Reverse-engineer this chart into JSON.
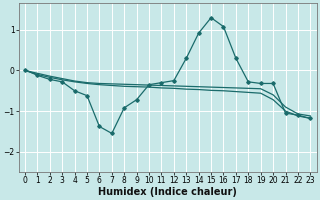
{
  "xlabel": "Humidex (Indice chaleur)",
  "bg_color": "#c8e8e8",
  "grid_color": "#ffffff",
  "line_color": "#1a6b6b",
  "xlim": [
    -0.5,
    23.5
  ],
  "ylim": [
    -2.5,
    1.65
  ],
  "yticks": [
    -2,
    -1,
    0,
    1
  ],
  "xticks": [
    0,
    1,
    2,
    3,
    4,
    5,
    6,
    7,
    8,
    9,
    10,
    11,
    12,
    13,
    14,
    15,
    16,
    17,
    18,
    19,
    20,
    21,
    22,
    23
  ],
  "series1_x": [
    0,
    1,
    2,
    3,
    4,
    5,
    6,
    7,
    8,
    9,
    10,
    11,
    12,
    13,
    14,
    15,
    16,
    17,
    18,
    19,
    20,
    21,
    22,
    23
  ],
  "series1_y": [
    0.0,
    -0.07,
    -0.14,
    -0.2,
    -0.26,
    -0.3,
    -0.32,
    -0.33,
    -0.34,
    -0.35,
    -0.36,
    -0.37,
    -0.38,
    -0.39,
    -0.4,
    -0.41,
    -0.42,
    -0.43,
    -0.44,
    -0.45,
    -0.6,
    -0.9,
    -1.07,
    -1.12
  ],
  "series2_x": [
    0,
    1,
    2,
    3,
    4,
    5,
    6,
    7,
    8,
    9,
    10,
    11,
    12,
    13,
    14,
    15,
    16,
    17,
    18,
    19,
    20,
    21,
    22,
    23
  ],
  "series2_y": [
    0.0,
    -0.1,
    -0.17,
    -0.23,
    -0.28,
    -0.32,
    -0.35,
    -0.37,
    -0.39,
    -0.4,
    -0.41,
    -0.43,
    -0.44,
    -0.46,
    -0.47,
    -0.49,
    -0.5,
    -0.52,
    -0.54,
    -0.56,
    -0.72,
    -1.0,
    -1.12,
    -1.18
  ],
  "series3_x": [
    0,
    1,
    2,
    3,
    4,
    5,
    6,
    7,
    8,
    9,
    10,
    11,
    12,
    13,
    14,
    15,
    16,
    17,
    18,
    19,
    20,
    21,
    22,
    23
  ],
  "series3_y": [
    0.02,
    -0.12,
    -0.22,
    -0.28,
    -0.5,
    -0.62,
    -1.38,
    -1.55,
    -0.92,
    -0.72,
    -0.35,
    -0.3,
    -0.25,
    0.3,
    0.92,
    1.3,
    1.08,
    0.3,
    -0.28,
    -0.32,
    -0.32,
    -1.05,
    -1.1,
    -1.18
  ],
  "xlabel_fontsize": 7,
  "tick_fontsize": 5.5
}
